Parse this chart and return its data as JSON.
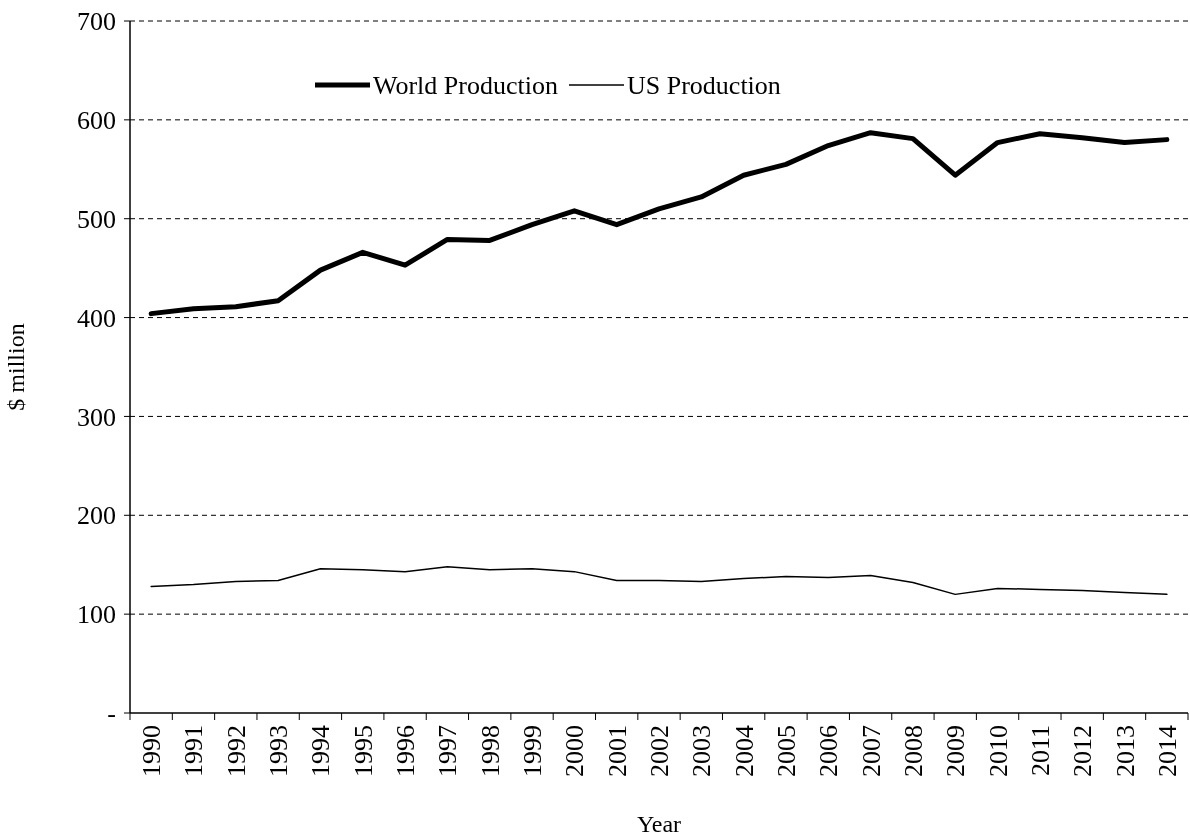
{
  "chart_data": {
    "type": "line",
    "xlabel": "Year",
    "ylabel": "$ million",
    "categories": [
      "1990",
      "1991",
      "1992",
      "1993",
      "1994",
      "1995",
      "1996",
      "1997",
      "1998",
      "1999",
      "2000",
      "2001",
      "2002",
      "2003",
      "2004",
      "2005",
      "2006",
      "2007",
      "2008",
      "2009",
      "2010",
      "2011",
      "2012",
      "2013",
      "2014"
    ],
    "series": [
      {
        "name": "World Production",
        "color": "#000000",
        "values": [
          404,
          409,
          411,
          417,
          448,
          466,
          453,
          479,
          478,
          494,
          508,
          494,
          510,
          522,
          544,
          555,
          574,
          587,
          581,
          544,
          577,
          586,
          582,
          577,
          580
        ]
      },
      {
        "name": "US Production",
        "color": "#000000",
        "values": [
          128,
          130,
          133,
          134,
          146,
          145,
          143,
          148,
          145,
          146,
          143,
          134,
          134,
          133,
          136,
          138,
          137,
          139,
          132,
          120,
          126,
          125,
          124,
          122,
          120
        ]
      }
    ],
    "ylim": [
      0,
      700
    ],
    "yticks": [
      {
        "value": 0,
        "label": "-"
      },
      100,
      200,
      300,
      400,
      500,
      600,
      700
    ],
    "grid": "y",
    "legend": "top left",
    "marker": "none",
    "line_style": "solid"
  }
}
